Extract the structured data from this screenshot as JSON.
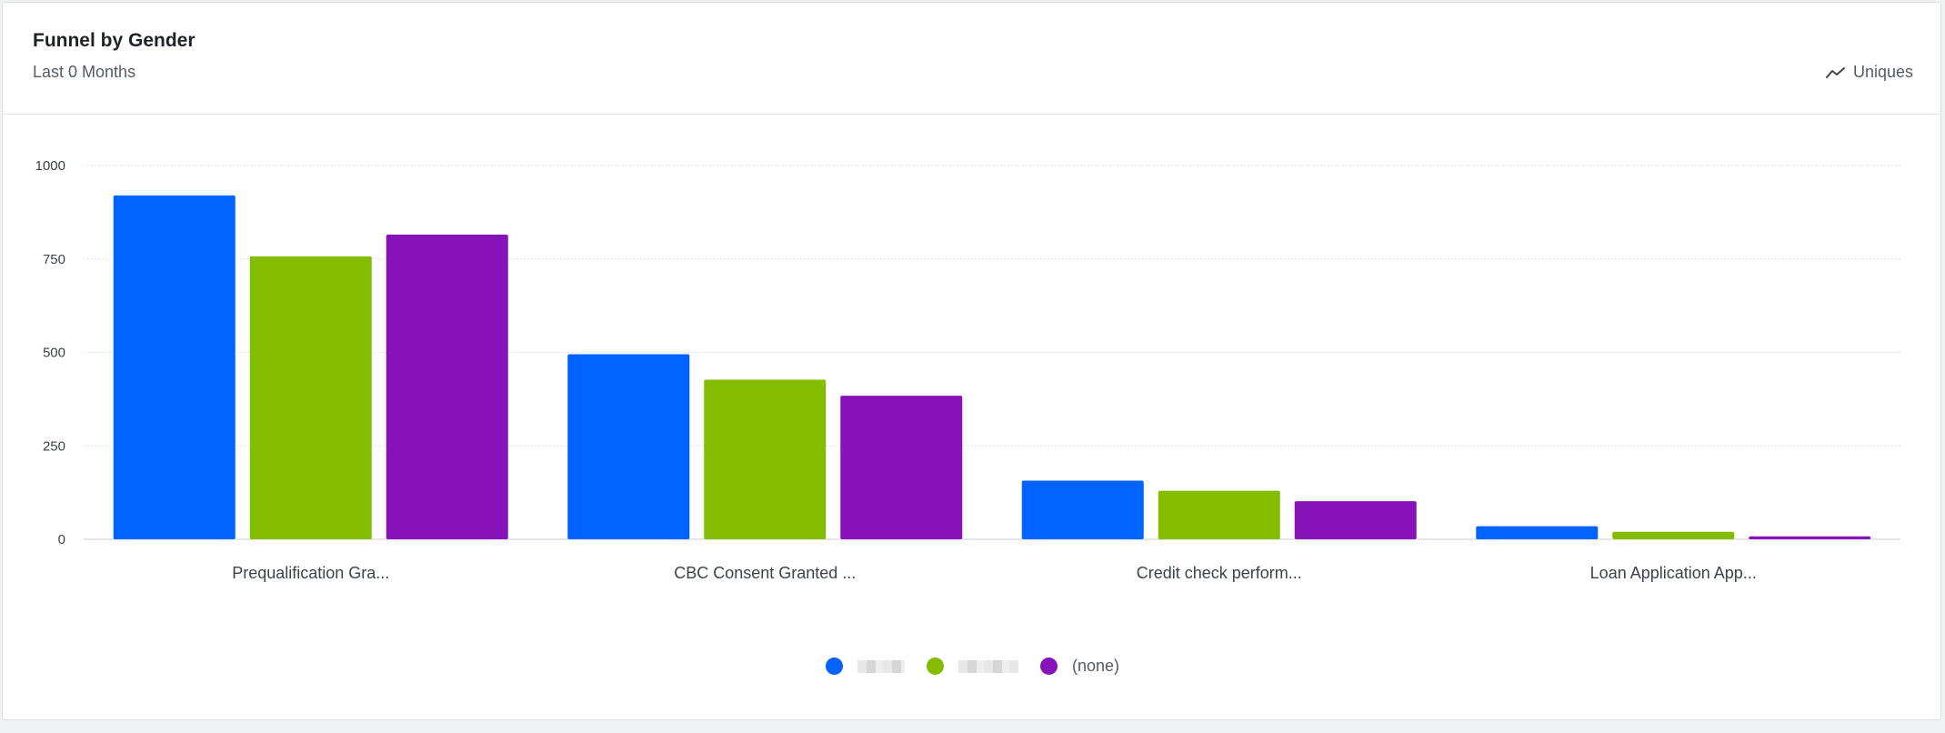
{
  "card": {
    "title": "Funnel by Gender",
    "subtitle": "Last 0 Months",
    "metric_label": "Uniques",
    "metric_icon": "trend-line-icon"
  },
  "colors": {
    "grid": "#dfe2e6",
    "axis_text": "#3d434c"
  },
  "chart_data": {
    "type": "bar",
    "title": "Funnel by Gender",
    "categories": [
      "Prequalification Gra...",
      "CBC Consent Granted ...",
      "Credit check perform...",
      "Loan Application App..."
    ],
    "series": [
      {
        "name": "",
        "color": "#0062ff",
        "values": [
          920,
          495,
          157,
          35
        ]
      },
      {
        "name": "",
        "color": "#84bd00",
        "values": [
          757,
          427,
          130,
          20
        ]
      },
      {
        "name": "(none)",
        "color": "#8712b8",
        "values": [
          815,
          384,
          102,
          8
        ]
      }
    ],
    "ylim": [
      0,
      1000
    ],
    "yticks": [
      0,
      250,
      500,
      750,
      1000
    ],
    "xlabel": "",
    "ylabel": "",
    "grid": true,
    "legend_position": "bottom"
  }
}
